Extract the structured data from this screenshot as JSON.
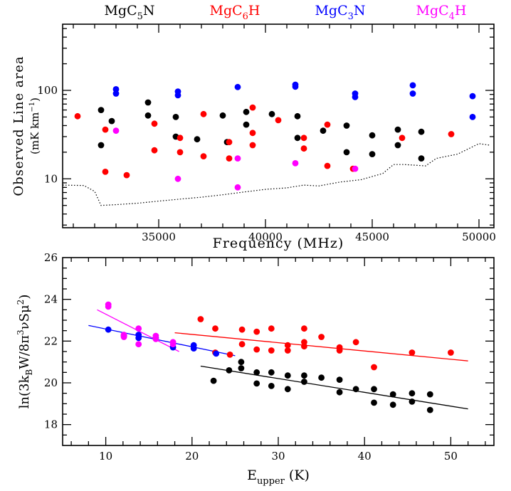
{
  "chart_data": [
    {
      "type": "scatter",
      "xlabel": "Frequency (MHz)",
      "ylabel": "Observed Line area",
      "ylabel_unit": "(mK km",
      "ylabel_unit_sup": "−1",
      "ylabel_unit_close": ")",
      "xlim": [
        30500,
        50700
      ],
      "ylim": [
        2.8,
        560
      ],
      "yscale": "log",
      "x_ticks": [
        35000,
        40000,
        45000,
        50000
      ],
      "x_ticklabels": [
        "35000",
        "40000",
        "45000",
        "50000"
      ],
      "y_ticks": [
        10,
        100
      ],
      "y_ticklabels": [
        "10",
        "100"
      ],
      "legend": [
        {
          "base": "MgC",
          "sub": "5",
          "tail": "N",
          "color": "#000000"
        },
        {
          "base": "MgC",
          "sub": "6",
          "tail": "H",
          "color": "#ff0000"
        },
        {
          "base": "MgC",
          "sub": "3",
          "tail": "N",
          "color": "#0000ff"
        },
        {
          "base": "MgC",
          "sub": "4",
          "tail": "H",
          "color": "#ff00ff"
        }
      ],
      "series": [
        {
          "color": "#000000",
          "points": [
            [
              32300,
              24
            ],
            [
              32300,
              60
            ],
            [
              32800,
              45
            ],
            [
              34500,
              73
            ],
            [
              34500,
              52
            ],
            [
              35800,
              50
            ],
            [
              35800,
              30
            ],
            [
              36800,
              28
            ],
            [
              38000,
              52
            ],
            [
              38200,
              26
            ],
            [
              39100,
              41
            ],
            [
              39100,
              57
            ],
            [
              40300,
              54
            ],
            [
              41500,
              51
            ],
            [
              41500,
              29
            ],
            [
              42700,
              35
            ],
            [
              43800,
              40
            ],
            [
              43800,
              20
            ],
            [
              45000,
              31
            ],
            [
              45000,
              19
            ],
            [
              46200,
              36
            ],
            [
              46200,
              24
            ],
            [
              47300,
              34
            ],
            [
              47300,
              17
            ]
          ]
        },
        {
          "color": "#ff0000",
          "points": [
            [
              31200,
              51
            ],
            [
              32500,
              36
            ],
            [
              32500,
              12
            ],
            [
              33500,
              11
            ],
            [
              34800,
              42
            ],
            [
              34800,
              21
            ],
            [
              36000,
              29
            ],
            [
              36000,
              20
            ],
            [
              37100,
              54
            ],
            [
              37100,
              18
            ],
            [
              38300,
              26
            ],
            [
              38300,
              17
            ],
            [
              39400,
              64
            ],
            [
              39400,
              33
            ],
            [
              39400,
              24
            ],
            [
              40600,
              46
            ],
            [
              41800,
              29
            ],
            [
              41800,
              22
            ],
            [
              42900,
              41
            ],
            [
              42900,
              14
            ],
            [
              44100,
              13
            ],
            [
              46400,
              29
            ],
            [
              48700,
              32
            ]
          ]
        },
        {
          "color": "#0000ff",
          "points": [
            [
              33000,
              103
            ],
            [
              33000,
              92
            ],
            [
              35900,
              97
            ],
            [
              35900,
              88
            ],
            [
              38700,
              109
            ],
            [
              41400,
              116
            ],
            [
              41400,
              110
            ],
            [
              44200,
              92
            ],
            [
              44200,
              84
            ],
            [
              46900,
              114
            ],
            [
              46900,
              92
            ],
            [
              49700,
              86
            ],
            [
              49700,
              50
            ]
          ]
        },
        {
          "color": "#ff00ff",
          "points": [
            [
              33000,
              35
            ],
            [
              35900,
              10
            ],
            [
              38700,
              17
            ],
            [
              38700,
              8
            ],
            [
              41400,
              15
            ],
            [
              44200,
              13
            ]
          ]
        }
      ],
      "noise_line": {
        "color": "#000000",
        "style": "dotted",
        "points": [
          [
            30500,
            8.5
          ],
          [
            31500,
            8.4
          ],
          [
            32000,
            7.2
          ],
          [
            32300,
            5.0
          ],
          [
            33000,
            5.1
          ],
          [
            34000,
            5.3
          ],
          [
            35000,
            5.6
          ],
          [
            36000,
            5.9
          ],
          [
            37000,
            6.2
          ],
          [
            38000,
            6.6
          ],
          [
            39000,
            7.1
          ],
          [
            40000,
            7.6
          ],
          [
            41000,
            7.9
          ],
          [
            41800,
            8.5
          ],
          [
            42500,
            8.3
          ],
          [
            43500,
            9.2
          ],
          [
            44500,
            9.8
          ],
          [
            45500,
            11.5
          ],
          [
            46000,
            14.5
          ],
          [
            46500,
            14.5
          ],
          [
            47500,
            14.0
          ],
          [
            48000,
            17.0
          ],
          [
            49000,
            19.0
          ],
          [
            50000,
            25.0
          ],
          [
            50500,
            24.0
          ]
        ]
      }
    },
    {
      "type": "scatter",
      "xlabel_base": "E",
      "xlabel_sub": "upper",
      "xlabel_tail": " (K)",
      "ylabel_parts": [
        "ln(3k",
        "B",
        "W/8π",
        "3",
        "νSμ",
        "2",
        ")"
      ],
      "xlim": [
        5,
        55
      ],
      "ylim": [
        17,
        26
      ],
      "x_ticks": [
        10,
        20,
        30,
        40,
        50
      ],
      "x_ticklabels": [
        "10",
        "20",
        "30",
        "40",
        "50"
      ],
      "y_ticks": [
        18,
        20,
        22,
        24,
        26
      ],
      "y_ticklabels": [
        "18",
        "20",
        "22",
        "24",
        "26"
      ],
      "series": [
        {
          "color": "#000000",
          "points": [
            [
              22.5,
              20.1
            ],
            [
              24.3,
              20.6
            ],
            [
              25.7,
              20.7
            ],
            [
              25.7,
              21.0
            ],
            [
              27.5,
              20.5
            ],
            [
              27.5,
              19.97
            ],
            [
              29.2,
              20.5
            ],
            [
              29.2,
              19.85
            ],
            [
              31.1,
              20.35
            ],
            [
              31.1,
              19.7
            ],
            [
              33,
              20.35
            ],
            [
              33,
              20.05
            ],
            [
              35,
              20.25
            ],
            [
              37.1,
              20.15
            ],
            [
              37.1,
              19.55
            ],
            [
              39,
              19.7
            ],
            [
              41.1,
              19.7
            ],
            [
              41.1,
              19.05
            ],
            [
              43.3,
              19.45
            ],
            [
              43.3,
              18.95
            ],
            [
              45.5,
              19.5
            ],
            [
              45.5,
              19.1
            ],
            [
              47.6,
              19.45
            ],
            [
              47.6,
              18.7
            ]
          ]
        },
        {
          "color": "#ff0000",
          "points": [
            [
              21,
              23.05
            ],
            [
              22.7,
              22.6
            ],
            [
              22.7,
              21.45
            ],
            [
              24.4,
              21.35
            ],
            [
              25.8,
              22.55
            ],
            [
              25.8,
              21.85
            ],
            [
              27.5,
              22.45
            ],
            [
              27.5,
              21.6
            ],
            [
              29.2,
              22.6
            ],
            [
              29.2,
              21.55
            ],
            [
              31.1,
              21.8
            ],
            [
              31.1,
              21.55
            ],
            [
              33,
              22.6
            ],
            [
              33,
              21.95
            ],
            [
              33,
              21.75
            ],
            [
              35,
              22.2
            ],
            [
              37.1,
              21.7
            ],
            [
              37.1,
              21.55
            ],
            [
              39,
              21.95
            ],
            [
              41.1,
              20.75
            ],
            [
              45.5,
              21.45
            ],
            [
              50,
              21.45
            ]
          ]
        },
        {
          "color": "#0000ff",
          "points": [
            [
              10.3,
              22.55
            ],
            [
              12.1,
              22.25
            ],
            [
              13.8,
              22.3
            ],
            [
              13.8,
              22.15
            ],
            [
              15.8,
              22.15
            ],
            [
              17.8,
              21.7
            ],
            [
              20.2,
              21.8
            ],
            [
              20.2,
              21.65
            ],
            [
              22.8,
              21.4
            ]
          ]
        },
        {
          "color": "#ff00ff",
          "points": [
            [
              10.3,
              23.75
            ],
            [
              10.3,
              23.65
            ],
            [
              12.1,
              22.3
            ],
            [
              12.1,
              22.2
            ],
            [
              13.8,
              22.6
            ],
            [
              13.8,
              21.85
            ],
            [
              15.8,
              22.25
            ],
            [
              15.8,
              22.1
            ],
            [
              17.8,
              21.95
            ],
            [
              17.8,
              21.85
            ]
          ]
        }
      ],
      "fits": [
        {
          "color": "#0000ff",
          "from": [
            8,
            22.75
          ],
          "to": [
            25,
            21.3
          ]
        },
        {
          "color": "#ff00ff",
          "from": [
            9,
            23.5
          ],
          "to": [
            18.5,
            21.5
          ]
        },
        {
          "color": "#ff0000",
          "from": [
            18,
            22.4
          ],
          "to": [
            52,
            21.05
          ]
        },
        {
          "color": "#000000",
          "from": [
            21,
            20.8
          ],
          "to": [
            52,
            18.75
          ]
        }
      ]
    }
  ]
}
